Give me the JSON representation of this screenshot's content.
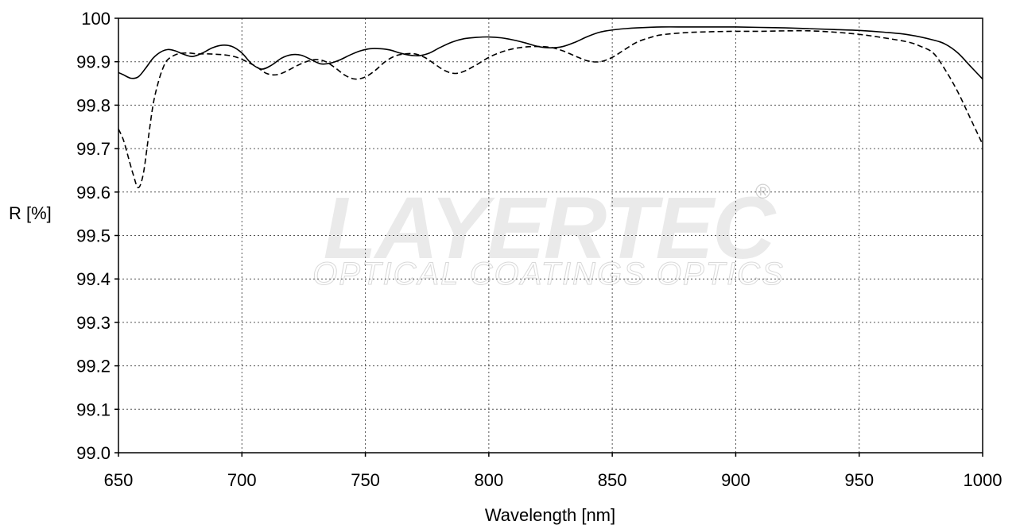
{
  "watermark": {
    "brand": "LAYERTEC",
    "tagline": "OPTICAL COATINGS OPTICS",
    "registered": "®"
  },
  "chart_data": {
    "type": "line",
    "xlabel": "Wavelength [nm]",
    "ylabel": "R [%]",
    "xlim": [
      650,
      1000
    ],
    "ylim": [
      99.0,
      100
    ],
    "xticks": [
      650,
      700,
      750,
      800,
      850,
      900,
      950,
      1000
    ],
    "yticks": [
      99.0,
      99.1,
      99.2,
      99.3,
      99.4,
      99.5,
      99.6,
      99.7,
      99.8,
      99.9,
      100
    ],
    "grid": true,
    "series": [
      {
        "style": "solid",
        "color": "#000000",
        "x": [
          650,
          652,
          655,
          658,
          661,
          664,
          667,
          670,
          673,
          676,
          680,
          684,
          688,
          692,
          696,
          700,
          704,
          708,
          712,
          716,
          720,
          724,
          728,
          732,
          736,
          740,
          744,
          748,
          752,
          756,
          760,
          764,
          768,
          772,
          776,
          780,
          785,
          790,
          795,
          800,
          805,
          810,
          815,
          820,
          825,
          830,
          835,
          840,
          845,
          850,
          855,
          860,
          870,
          880,
          890,
          900,
          910,
          920,
          930,
          940,
          950,
          960,
          970,
          980,
          985,
          990,
          995,
          1000
        ],
        "y": [
          99.875,
          99.87,
          99.862,
          99.865,
          99.885,
          99.908,
          99.922,
          99.928,
          99.925,
          99.918,
          99.912,
          99.92,
          99.932,
          99.938,
          99.935,
          99.92,
          99.895,
          99.883,
          99.892,
          99.908,
          99.916,
          99.915,
          99.905,
          99.895,
          99.897,
          99.905,
          99.916,
          99.925,
          99.93,
          99.93,
          99.927,
          99.92,
          99.915,
          99.914,
          99.92,
          99.932,
          99.945,
          99.953,
          99.956,
          99.957,
          99.955,
          99.95,
          99.943,
          99.935,
          99.932,
          99.935,
          99.945,
          99.958,
          99.968,
          99.973,
          99.976,
          99.978,
          99.98,
          99.98,
          99.98,
          99.98,
          99.979,
          99.978,
          99.976,
          99.974,
          99.972,
          99.968,
          99.962,
          99.95,
          99.94,
          99.92,
          99.89,
          99.86
        ]
      },
      {
        "style": "dashed",
        "color": "#000000",
        "x": [
          650,
          652,
          654,
          656,
          658,
          660,
          662,
          664,
          666,
          668,
          670,
          674,
          678,
          682,
          686,
          690,
          694,
          698,
          702,
          706,
          710,
          714,
          718,
          722,
          726,
          730,
          734,
          738,
          742,
          746,
          750,
          754,
          758,
          762,
          766,
          770,
          774,
          778,
          782,
          786,
          790,
          795,
          800,
          805,
          810,
          815,
          820,
          825,
          830,
          835,
          840,
          845,
          850,
          855,
          860,
          865,
          870,
          880,
          890,
          900,
          910,
          920,
          930,
          940,
          950,
          960,
          970,
          975,
          980,
          985,
          990,
          995,
          1000
        ],
        "y": [
          99.745,
          99.72,
          99.68,
          99.64,
          99.61,
          99.64,
          99.72,
          99.8,
          99.85,
          99.885,
          99.905,
          99.918,
          99.92,
          99.918,
          99.918,
          99.917,
          99.915,
          99.91,
          99.9,
          99.888,
          99.873,
          99.87,
          99.878,
          99.89,
          99.9,
          99.905,
          99.9,
          99.885,
          99.868,
          99.86,
          99.865,
          99.88,
          99.9,
          99.913,
          99.918,
          99.918,
          99.91,
          99.895,
          99.88,
          99.873,
          99.878,
          99.893,
          99.91,
          99.922,
          99.93,
          99.934,
          99.935,
          99.933,
          99.925,
          99.913,
          99.902,
          99.9,
          99.91,
          99.928,
          99.945,
          99.955,
          99.962,
          99.967,
          99.969,
          99.97,
          99.97,
          99.971,
          99.971,
          99.968,
          99.963,
          99.955,
          99.945,
          99.935,
          99.92,
          99.88,
          99.83,
          99.77,
          99.71
        ]
      }
    ]
  }
}
